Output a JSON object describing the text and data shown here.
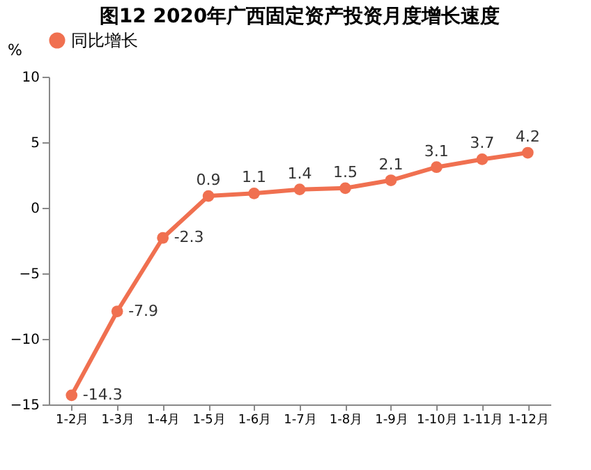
{
  "chart_data": {
    "type": "line",
    "title": "图12 2020年广西固定资产投资月度增长速度",
    "ylabel": "%",
    "categories": [
      "1-2月",
      "1-3月",
      "1-4月",
      "1-5月",
      "1-6月",
      "1-7月",
      "1-8月",
      "1-9月",
      "1-10月",
      "1-11月",
      "1-12月"
    ],
    "series": [
      {
        "name": "同比增长",
        "color": "#f07050",
        "values": [
          -14.3,
          -7.9,
          -2.3,
          0.9,
          1.1,
          1.4,
          1.5,
          2.1,
          3.1,
          3.7,
          4.2
        ]
      }
    ],
    "ylim": [
      -15,
      10
    ],
    "yticks": [
      -15,
      -10,
      -5,
      0,
      5,
      10
    ],
    "data_labels": true,
    "legend": "top",
    "marker": "circle",
    "grid": false
  }
}
